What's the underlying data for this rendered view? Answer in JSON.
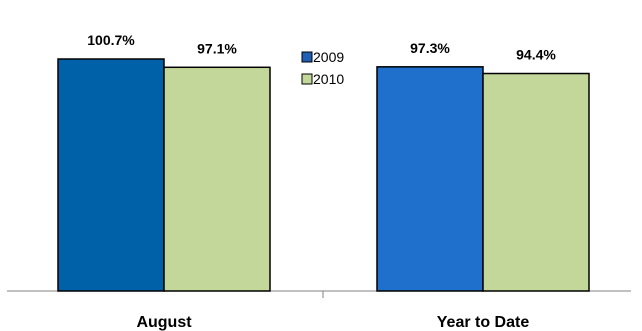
{
  "chart_data": {
    "type": "bar",
    "categories": [
      "August",
      "Year to Date"
    ],
    "series": [
      {
        "name": "2009",
        "values": [
          100.7,
          97.3
        ],
        "labels": [
          "100.7%",
          "97.3%"
        ]
      },
      {
        "name": "2010",
        "values": [
          97.1,
          94.4
        ],
        "labels": [
          "97.1%",
          "94.4%"
        ]
      }
    ],
    "title": "",
    "xlabel": "",
    "ylabel": "",
    "ylim": [
      0,
      100.7
    ],
    "legend_position": "top-center",
    "grid": false,
    "colors": {
      "august_2009": "#0060a8",
      "ytd_2009": "#1f6fcc",
      "series_2010": "#c4d79b",
      "bar_outline": "#000000",
      "axis": "#808080",
      "legend_2009": "#1f5fb4"
    }
  }
}
